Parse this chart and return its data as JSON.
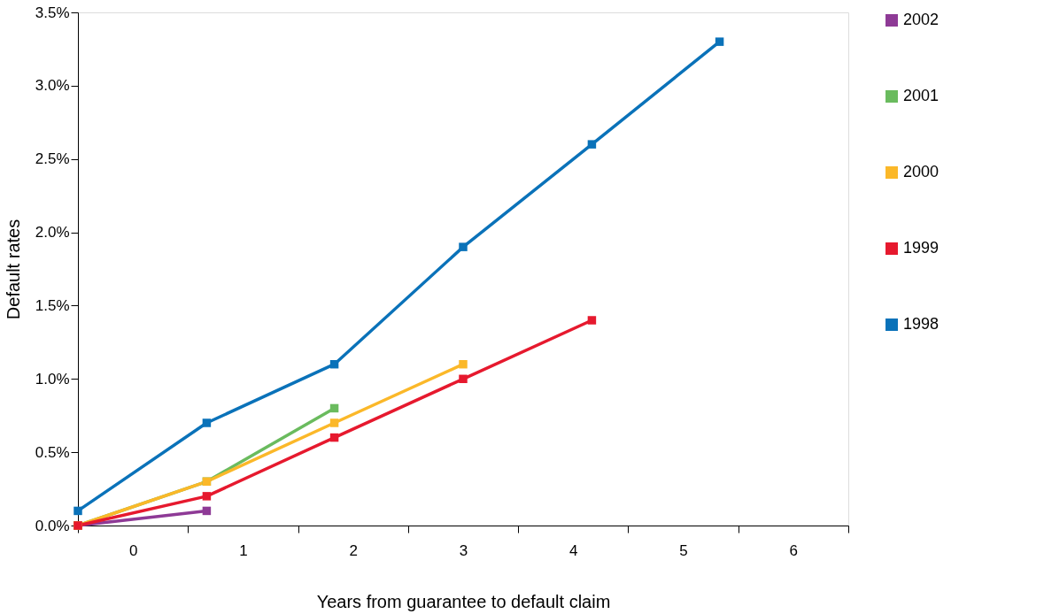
{
  "chart_data": {
    "type": "line",
    "xlabel": "Years from guarantee to default claim",
    "ylabel": "Default rates",
    "xlim": [
      -0.5,
      6.5
    ],
    "xticks": [
      {
        "value": -0.5,
        "label": null
      },
      {
        "value": 0,
        "label": "0"
      },
      {
        "value": 0.5,
        "label": null
      },
      {
        "value": 1,
        "label": "1"
      },
      {
        "value": 1.5,
        "label": null
      },
      {
        "value": 2,
        "label": "2"
      },
      {
        "value": 2.5,
        "label": null
      },
      {
        "value": 3,
        "label": "3"
      },
      {
        "value": 3.5,
        "label": null
      },
      {
        "value": 4,
        "label": "4"
      },
      {
        "value": 4.5,
        "label": null
      },
      {
        "value": 5,
        "label": "5"
      },
      {
        "value": 5.5,
        "label": null
      },
      {
        "value": 6,
        "label": "6"
      },
      {
        "value": 6.5,
        "label": null
      }
    ],
    "ylim": [
      0,
      3.5
    ],
    "yticks": [
      {
        "value": 0,
        "label": "0.0%"
      },
      {
        "value": 0.5,
        "label": "0.5%"
      },
      {
        "value": 1,
        "label": "1.0%"
      },
      {
        "value": 1.5,
        "label": "1.5%"
      },
      {
        "value": 2,
        "label": "2.0%"
      },
      {
        "value": 2.5,
        "label": "2.5%"
      },
      {
        "value": 3,
        "label": "3.0%"
      },
      {
        "value": 3.5,
        "label": "3.5%"
      }
    ],
    "x": [
      -0.5,
      0.67,
      1.83,
      3.0,
      4.17,
      5.33
    ],
    "grid": false,
    "legend": "right",
    "marker": "square",
    "line_style": "solid",
    "series": [
      {
        "name": "2002",
        "color": "#8e3a96",
        "values": [
          0.0,
          0.1,
          null,
          null,
          null,
          null
        ]
      },
      {
        "name": "2001",
        "color": "#6abb5e",
        "values": [
          0.0,
          0.3,
          0.8,
          null,
          null,
          null
        ]
      },
      {
        "name": "2000",
        "color": "#fbb829",
        "values": [
          0.0,
          0.3,
          0.7,
          1.1,
          null,
          null
        ]
      },
      {
        "name": "1999",
        "color": "#e6192e",
        "values": [
          0.0,
          0.2,
          0.6,
          1.0,
          1.4,
          null
        ]
      },
      {
        "name": "1998",
        "color": "#0a72b9",
        "values": [
          0.1,
          0.7,
          1.1,
          1.9,
          2.6,
          3.3
        ]
      }
    ]
  }
}
